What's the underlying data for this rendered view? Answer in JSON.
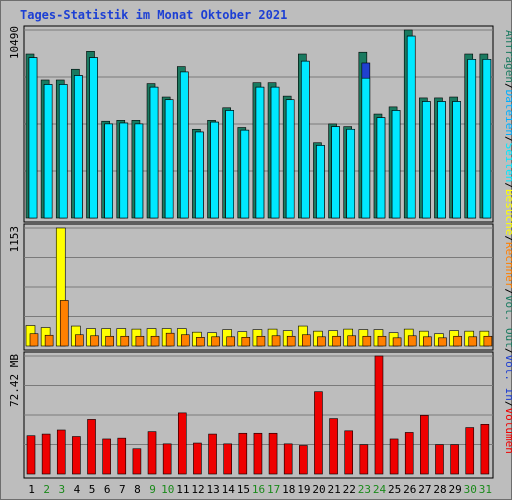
{
  "title": "Tages-Statistik im Monat Oktober 2021",
  "colors": {
    "anfragen": "#1a7a60",
    "dateien": "#00b0ff",
    "seiten": "#00e8ff",
    "besuche": "#ffff00",
    "rechner": "#ff8000",
    "volumen": "#ee0000",
    "vol_in": "#2040d0",
    "vol_out": "#1a7a60",
    "title": "#1c3fd4",
    "weekend": "#1a8a1a",
    "weekday": "#000000"
  },
  "legend": {
    "anfragen": "Anfragen",
    "dateien": "Dateien",
    "seiten": "Seiten",
    "besuche": "Besuche",
    "rechner": "Rechner",
    "vol_out": "Vol. Out",
    "vol_in": "Vol. In",
    "volumen": "Volumen",
    "sep": "/"
  },
  "chart_data": {
    "type": "bar",
    "title": "Tages-Statistik im Monat Oktober 2021",
    "days": [
      "1",
      "2",
      "3",
      "4",
      "5",
      "6",
      "7",
      "8",
      "9",
      "10",
      "11",
      "12",
      "13",
      "14",
      "15",
      "16",
      "17",
      "18",
      "19",
      "20",
      "21",
      "22",
      "23",
      "24",
      "25",
      "26",
      "27",
      "28",
      "29",
      "30",
      "31"
    ],
    "weekend_days": [
      2,
      3,
      9,
      10,
      16,
      17,
      23,
      24,
      30,
      31
    ],
    "panels": [
      {
        "name": "top",
        "ymax_label": "10490",
        "ymax": 10490,
        "series": [
          {
            "name": "Anfragen",
            "values": [
              9150,
              7700,
              7700,
              8300,
              9300,
              5400,
              5450,
              5450,
              7500,
              6750,
              8450,
              4950,
              5450,
              6150,
              5050,
              7550,
              7550,
              6800,
              9150,
              4200,
              5250,
              5100,
              9250,
              5800,
              6200,
              10490,
              6700,
              6700,
              6750,
              9150,
              9150
            ]
          },
          {
            "name": "Dateien",
            "values": [
              8950,
              7450,
              7450,
              7950,
              8950,
              5250,
              5300,
              5250,
              7300,
              6600,
              8150,
              4800,
              5350,
              6000,
              4900,
              7300,
              7300,
              6600,
              8750,
              4050,
              5100,
              4950,
              8650,
              5600,
              6000,
              10150,
              6500,
              6500,
              6500,
              8850,
              8850
            ]
          },
          {
            "name": "Seiten",
            "values": [
              8950,
              7450,
              7450,
              7950,
              8950,
              5250,
              5300,
              5250,
              7300,
              6600,
              8150,
              4800,
              5350,
              6000,
              4900,
              7300,
              7300,
              6600,
              8750,
              4050,
              5100,
              4950,
              7800,
              5600,
              6000,
              10150,
              6500,
              6500,
              6500,
              8850,
              8850
            ]
          }
        ]
      },
      {
        "name": "middle",
        "ymax_label": "1153",
        "ymax": 1153,
        "series": [
          {
            "name": "Besuche",
            "values": [
              200,
              180,
              1153,
              195,
              170,
              170,
              170,
              165,
              170,
              170,
              170,
              135,
              130,
              160,
              140,
              160,
              165,
              150,
              195,
              145,
              150,
              165,
              160,
              160,
              130,
              165,
              145,
              120,
              150,
              145,
              145
            ]
          },
          {
            "name": "Rechner",
            "values": [
              120,
              105,
              445,
              110,
              100,
              95,
              95,
              95,
              95,
              125,
              110,
              85,
              90,
              90,
              85,
              95,
              100,
              95,
              110,
              90,
              95,
              100,
              95,
              95,
              80,
              100,
              90,
              80,
              95,
              90,
              95
            ]
          }
        ]
      },
      {
        "name": "bottom",
        "ymax_label": "72.42 MB",
        "ymax": 72.42,
        "series": [
          {
            "name": "Volumen",
            "values": [
              23.5,
              24.5,
              27.0,
              23.0,
              33.5,
              21.5,
              22.0,
              15.5,
              26.0,
              18.5,
              37.5,
              19.0,
              24.5,
              18.5,
              25.0,
              25.0,
              25.0,
              18.5,
              17.5,
              50.5,
              34.0,
              26.5,
              18.0,
              72.42,
              21.5,
              25.5,
              36.0,
              18.0,
              18.0,
              28.5,
              30.5
            ]
          }
        ]
      }
    ]
  }
}
